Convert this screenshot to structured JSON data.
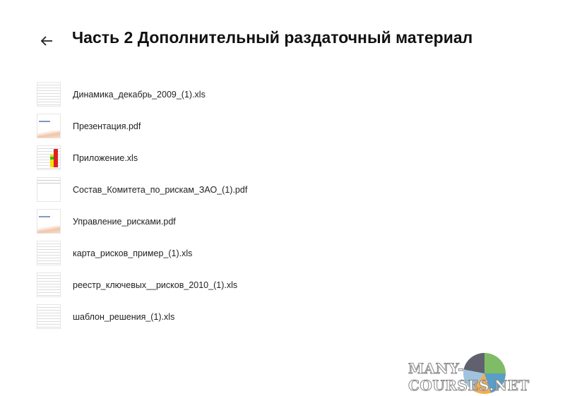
{
  "header": {
    "title": "Часть 2 Дополнительный раздаточный материал",
    "back_icon": "arrow-left-icon"
  },
  "files": [
    {
      "name": "Динамика_декабрь_2009_(1).xls",
      "type": "xls"
    },
    {
      "name": "Презентация.pdf",
      "type": "pdf"
    },
    {
      "name": "Приложение.xls",
      "type": "xls-color"
    },
    {
      "name": "Состав_Комитета_по_рискам_ЗАО_(1).pdf",
      "type": "pdf-text"
    },
    {
      "name": "Управление_рисками.pdf",
      "type": "pdf"
    },
    {
      "name": "карта_рисков_пример_(1).xls",
      "type": "xls"
    },
    {
      "name": "реестр_ключевых__рисков_2010_(1).xls",
      "type": "xls"
    },
    {
      "name": "шаблон_решения_(1).xls",
      "type": "xls"
    }
  ],
  "watermark": "MANY-COURSES.NET"
}
